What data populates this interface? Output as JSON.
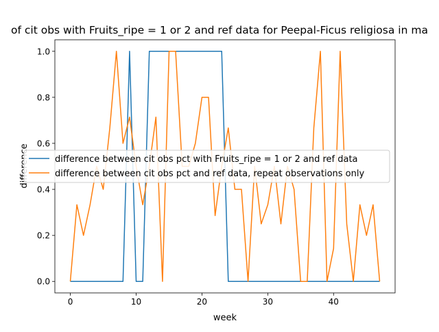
{
  "chart_data": {
    "type": "line",
    "title": "of cit obs with Fruits_ripe = 1 or 2 and ref data for Peepal-Ficus religiosa in ma",
    "xlabel": "week",
    "ylabel": "difference",
    "xlim": [
      -2.35,
      49.35
    ],
    "ylim": [
      -0.05,
      1.05
    ],
    "xticks": [
      0,
      10,
      20,
      30,
      40
    ],
    "yticks": [
      0.0,
      0.2,
      0.4,
      0.6,
      0.8,
      1.0
    ],
    "xtick_labels": [
      "0",
      "10",
      "20",
      "30",
      "40"
    ],
    "ytick_labels": [
      "0.0",
      "0.2",
      "0.4",
      "0.6",
      "0.8",
      "1.0"
    ],
    "grid": false,
    "legend_position": "center-right",
    "series": [
      {
        "name": "difference between cit obs pct with Fruits_ripe = 1 or 2 and ref data",
        "color": "#1f77b4",
        "x": [
          0,
          1,
          2,
          3,
          4,
          5,
          6,
          7,
          8,
          9,
          10,
          11,
          12,
          13,
          14,
          15,
          16,
          17,
          18,
          19,
          20,
          21,
          22,
          23,
          24,
          25,
          26,
          27,
          28,
          29,
          30,
          31,
          32,
          33,
          34,
          35,
          36,
          37,
          38,
          39,
          40,
          41,
          42,
          43,
          44,
          45,
          46,
          47
        ],
        "values": [
          0,
          0,
          0,
          0,
          0,
          0,
          0,
          0,
          0,
          1,
          0,
          0,
          1,
          1,
          1,
          1,
          1,
          1,
          1,
          1,
          1,
          1,
          1,
          1,
          0,
          0,
          0,
          0,
          0,
          0,
          0,
          0,
          0,
          0,
          0,
          0,
          0,
          0,
          0,
          0,
          0,
          0,
          0,
          0,
          0,
          0,
          0,
          0
        ]
      },
      {
        "name": "difference between cit obs pct and ref data, repeat observations only",
        "color": "#ff7f0e",
        "x": [
          0,
          1,
          2,
          3,
          4,
          5,
          6,
          7,
          8,
          9,
          10,
          11,
          12,
          13,
          14,
          15,
          16,
          17,
          18,
          19,
          20,
          21,
          22,
          23,
          24,
          25,
          26,
          27,
          28,
          29,
          30,
          31,
          32,
          33,
          34,
          35,
          36,
          37,
          38,
          39,
          40,
          41,
          42,
          43,
          44,
          45,
          46,
          47
        ],
        "values": [
          0,
          0.333,
          0.2,
          0.333,
          0.5,
          0.4,
          0.667,
          1.0,
          0.6,
          0.714,
          0.5,
          0.333,
          0.5,
          0.714,
          0,
          1.0,
          1.0,
          0.5,
          0.5,
          0.6,
          0.8,
          0.8,
          0.286,
          0.5,
          0.667,
          0.4,
          0.4,
          0,
          0.5,
          0.25,
          0.333,
          0.5,
          0.25,
          0.5,
          0.4,
          0,
          0,
          0.667,
          1.0,
          0,
          0.143,
          1.0,
          0.25,
          0,
          0.333,
          0.2,
          0.333,
          0
        ]
      }
    ]
  }
}
